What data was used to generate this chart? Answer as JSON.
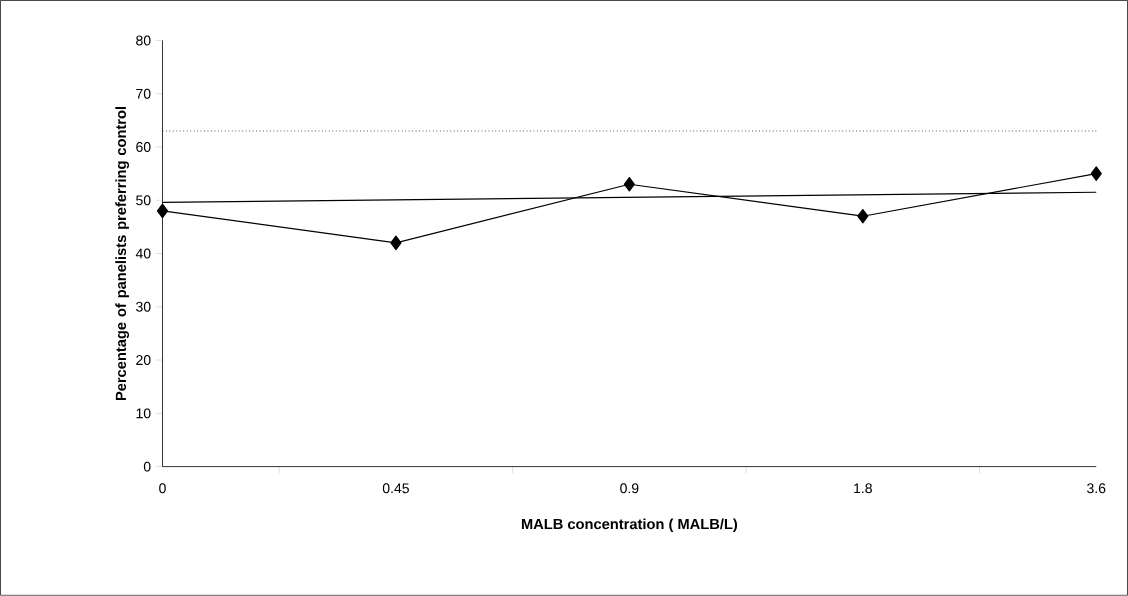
{
  "chart_data": {
    "type": "line",
    "xlabel": "MALB concentration ( MALB/L)",
    "ylabel": "Percentage of panelists preferring control",
    "categories": [
      "0",
      "0.45",
      "0.9",
      "1.8",
      "3.6"
    ],
    "series": [
      {
        "color": "#000000",
        "values": [
          48,
          42,
          53,
          47,
          55
        ],
        "marker": "diamond"
      },
      {
        "color": "#000000",
        "x": [
          "0",
          "3.6"
        ],
        "values": [
          49.6,
          51.5
        ],
        "marker": "none"
      }
    ],
    "ylim": [
      0,
      80
    ],
    "yticks": [
      0,
      10,
      20,
      30,
      40,
      50,
      60,
      70,
      80
    ],
    "ref_lines": [
      {
        "axis": "y",
        "value": 63,
        "color": "#000000",
        "line_style": "dotted"
      }
    ],
    "grid": false
  }
}
